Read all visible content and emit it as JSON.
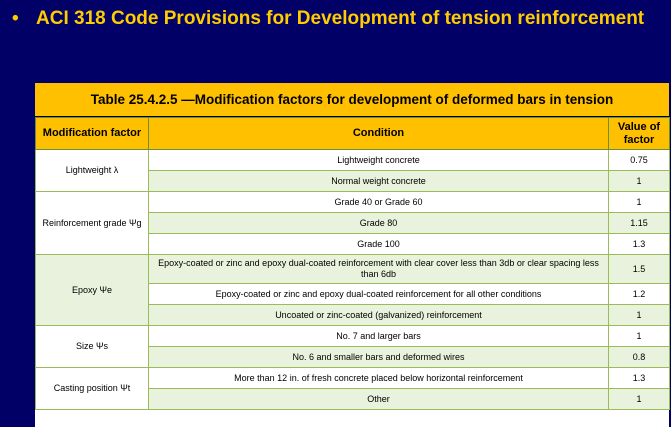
{
  "heading": {
    "bullet": "•",
    "text": "ACI 318 Code Provisions for Development of tension reinforcement"
  },
  "table": {
    "caption": "Table 25.4.2.5 —Modification factors for development of deformed bars in tension",
    "headers": [
      "Modification factor",
      "Condition",
      "Value of factor"
    ],
    "groups": [
      {
        "factor": "Lightweight λ",
        "rows": [
          {
            "condition": "Lightweight concrete",
            "value": "0.75"
          },
          {
            "condition": "Normal weight concrete",
            "value": "1"
          }
        ]
      },
      {
        "factor": "Reinforcement grade Ψg",
        "rows": [
          {
            "condition": "Grade 40 or Grade 60",
            "value": "1"
          },
          {
            "condition": "Grade 80",
            "value": "1.15"
          },
          {
            "condition": "Grade 100",
            "value": "1.3"
          }
        ]
      },
      {
        "factor": "Epoxy Ψe",
        "rows": [
          {
            "condition": "Epoxy-coated or zinc and epoxy dual-coated reinforcement with clear cover less than 3db or clear spacing less than 6db",
            "value": "1.5"
          },
          {
            "condition": "Epoxy-coated or zinc and epoxy dual-coated reinforcement for all other conditions",
            "value": "1.2"
          },
          {
            "condition": "Uncoated or zinc-coated (galvanized) reinforcement",
            "value": "1"
          }
        ]
      },
      {
        "factor": "Size Ψs",
        "rows": [
          {
            "condition": "No. 7 and larger bars",
            "value": "1"
          },
          {
            "condition": "No. 6 and smaller bars and deformed wires",
            "value": "0.8"
          }
        ]
      },
      {
        "factor": "Casting position Ψt",
        "rows": [
          {
            "condition": "More than 12 in. of fresh concrete placed below horizontal reinforcement",
            "value": "1.3"
          },
          {
            "condition": "Other",
            "value": "1"
          }
        ]
      }
    ]
  },
  "colors": {
    "background": "#000066",
    "heading": "#ffcc00",
    "header_fill": "#ffc000",
    "alt_row": "#e9f2dc",
    "border": "#9bbb59"
  }
}
